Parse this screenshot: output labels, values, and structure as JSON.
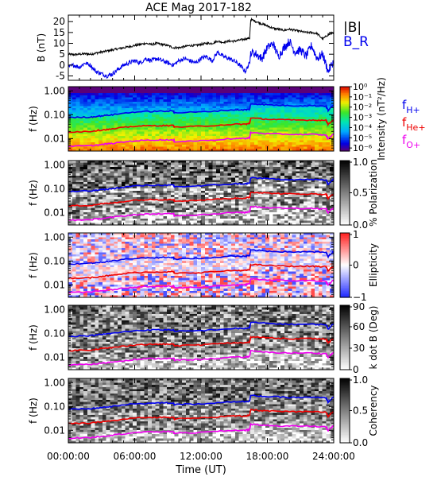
{
  "chart_data": {
    "type": "line",
    "title": "ACE Mag 2017-182",
    "xlabel": "Time (UT)",
    "x_ticks": [
      "00:00:00",
      "06:00:00",
      "12:00:00",
      "18:00:00",
      "24:00:00"
    ],
    "x_range_hours": [
      0,
      24
    ],
    "panels": [
      {
        "kind": "timeseries",
        "ylabel": "B (nT)",
        "y_ticks": [
          20,
          15,
          10,
          5,
          0,
          -5
        ],
        "ylim": [
          -7,
          23
        ],
        "legend": [
          "|B|",
          "B_R"
        ],
        "series": [
          {
            "name": "|B|",
            "color": "#000000",
            "x": [
              0,
              0.5,
              1,
              1.5,
              2,
              2.5,
              3,
              3.5,
              4,
              4.5,
              5,
              5.5,
              6,
              6.5,
              7,
              7.5,
              8,
              8.5,
              9,
              9.5,
              10,
              10.5,
              11,
              11.5,
              12,
              12.5,
              13,
              13.5,
              14,
              14.5,
              15,
              15.5,
              16,
              16.4,
              16.5,
              17,
              17.5,
              18,
              18.5,
              19,
              19.5,
              20,
              20.5,
              21,
              21.5,
              22,
              22.5,
              23,
              23.5,
              24
            ],
            "y": [
              5,
              4.8,
              5,
              5.2,
              5,
              5.5,
              6,
              6.5,
              7,
              7.5,
              8,
              8.5,
              9,
              9.5,
              10,
              9.5,
              10,
              9.5,
              9,
              8,
              8,
              8.5,
              9,
              9,
              9.5,
              10,
              10,
              11,
              10.5,
              11,
              11,
              11.5,
              12,
              12.5,
              21,
              20,
              19,
              18,
              17,
              16.5,
              16,
              16.5,
              16,
              15.5,
              15,
              15,
              14.5,
              12,
              14,
              15
            ]
          },
          {
            "name": "B_R",
            "color": "#0000ee",
            "x": [
              0,
              0.5,
              1,
              1.5,
              2,
              2.5,
              3,
              3.5,
              4,
              4.5,
              5,
              5.5,
              6,
              6.5,
              7,
              7.5,
              8,
              8.5,
              9,
              9.5,
              10,
              10.5,
              11,
              11.5,
              12,
              12.5,
              13,
              13.5,
              14,
              14.5,
              15,
              15.5,
              16,
              16.4,
              16.5,
              17,
              17.5,
              18,
              18.5,
              19,
              19.5,
              20,
              20.5,
              21,
              21.5,
              22,
              22.5,
              23,
              23.5,
              24
            ],
            "y": [
              -1,
              0,
              -1,
              1,
              0,
              -3,
              -4,
              -5,
              -4,
              -2,
              0,
              1,
              2,
              1,
              3,
              2,
              3,
              2,
              1,
              0,
              2,
              3,
              2,
              1,
              3,
              4,
              2,
              6,
              4,
              3,
              2,
              0,
              -3,
              1,
              6,
              5,
              3,
              8,
              10,
              4,
              8,
              11,
              6,
              7,
              4,
              9,
              3,
              5,
              -3,
              2
            ]
          }
        ]
      },
      {
        "kind": "spectrogram",
        "ylabel": "f (Hz)",
        "y_ticks": [
          "1.00",
          "0.10",
          "0.01"
        ],
        "colorbar": {
          "label": "Intensity (nT²/Hz)",
          "ticks": [
            "10⁰",
            "10⁻¹",
            "10⁻²",
            "10⁻³",
            "10⁻⁴",
            "10⁻⁵",
            "10⁻⁶"
          ],
          "range_log10": [
            -6.3,
            0
          ]
        },
        "legend": [
          "f_H+",
          "f_He+",
          "f_O+"
        ]
      },
      {
        "kind": "spectrogram",
        "ylabel": "f (Hz)",
        "y_ticks": [
          "1.00",
          "0.10",
          "0.01"
        ],
        "colorbar": {
          "label": "% Polarization",
          "ticks": [
            "1.0",
            "0.5",
            "0.0"
          ],
          "range": [
            0,
            1
          ]
        }
      },
      {
        "kind": "spectrogram",
        "ylabel": "f (Hz)",
        "y_ticks": [
          "1.00",
          "0.10",
          "0.01"
        ],
        "colorbar": {
          "label": "Ellipticity",
          "ticks": [
            "1",
            "0",
            "−1"
          ],
          "range": [
            -1,
            1
          ]
        }
      },
      {
        "kind": "spectrogram",
        "ylabel": "f (Hz)",
        "y_ticks": [
          "1.00",
          "0.10",
          "0.01"
        ],
        "colorbar": {
          "label": "k dot B (Deg)",
          "ticks": [
            "90",
            "60",
            "30",
            "0"
          ],
          "range": [
            0,
            90
          ]
        }
      },
      {
        "kind": "spectrogram",
        "ylabel": "f (Hz)",
        "y_ticks": [
          "1.00",
          "0.10",
          "0.01"
        ],
        "colorbar": {
          "label": "Coherency",
          "ticks": [
            "1.0",
            "0.5",
            "0.0"
          ],
          "range": [
            0,
            1
          ]
        }
      }
    ],
    "gyrofrequency_lines": [
      {
        "name": "f_H+",
        "color": "#0000ee",
        "x": [
          0,
          2,
          3,
          4,
          6,
          8,
          9.5,
          9.6,
          12,
          15,
          16,
          16.4,
          16.5,
          18,
          20,
          22,
          23.3,
          23.5,
          24
        ],
        "f_hz": [
          0.075,
          0.08,
          0.09,
          0.1,
          0.13,
          0.14,
          0.14,
          0.12,
          0.13,
          0.16,
          0.16,
          0.17,
          0.29,
          0.26,
          0.24,
          0.24,
          0.23,
          0.15,
          0.25
        ]
      },
      {
        "name": "f_He+",
        "color": "#ee0000",
        "x": [
          0,
          2,
          3,
          4,
          6,
          8,
          9.5,
          9.6,
          12,
          15,
          16,
          16.4,
          16.5,
          18,
          20,
          22,
          23.3,
          23.5,
          24
        ],
        "f_hz": [
          0.019,
          0.02,
          0.023,
          0.025,
          0.033,
          0.035,
          0.035,
          0.03,
          0.033,
          0.04,
          0.04,
          0.043,
          0.072,
          0.065,
          0.06,
          0.06,
          0.058,
          0.038,
          0.062
        ]
      },
      {
        "name": "f_O+",
        "color": "#ee00ee",
        "x": [
          0,
          2,
          3,
          4,
          6,
          8,
          9.5,
          9.6,
          12,
          15,
          16,
          16.4,
          16.5,
          18,
          20,
          22,
          23.3,
          23.5,
          24
        ],
        "f_hz": [
          0.0047,
          0.005,
          0.0056,
          0.0063,
          0.0081,
          0.0088,
          0.0088,
          0.0075,
          0.0081,
          0.01,
          0.01,
          0.011,
          0.018,
          0.016,
          0.015,
          0.015,
          0.014,
          0.0094,
          0.016
        ]
      }
    ]
  }
}
